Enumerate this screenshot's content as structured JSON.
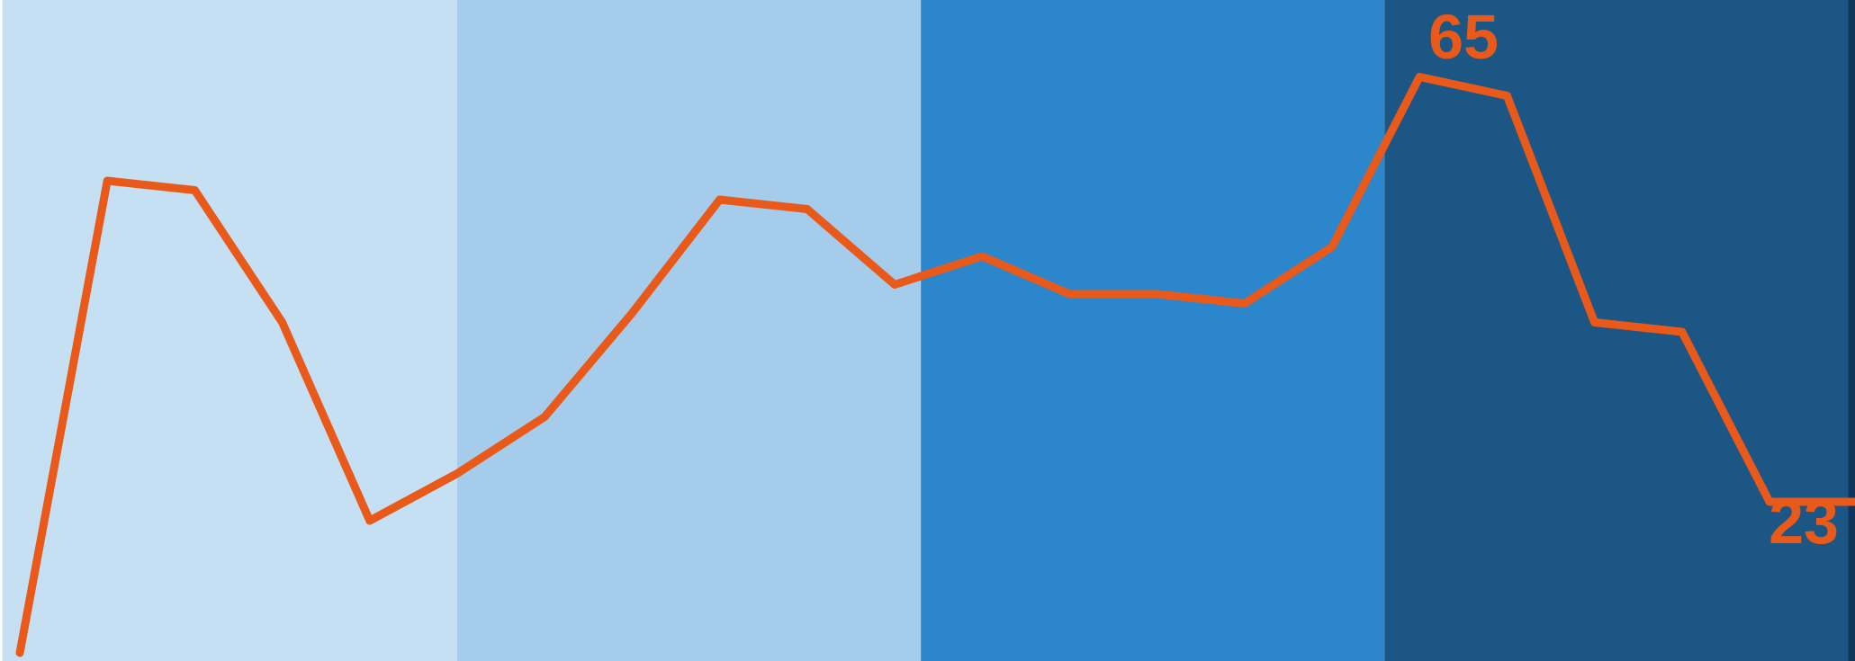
{
  "chart_data": {
    "type": "line",
    "title": "",
    "xlabel": "",
    "ylabel": "",
    "x": [
      0,
      1,
      2,
      3,
      4,
      5,
      6,
      7,
      8,
      9,
      10,
      11,
      12,
      13,
      14,
      15,
      16,
      17,
      18,
      19,
      20,
      21
    ],
    "ylim": [
      0,
      70
    ],
    "grid": false,
    "legend": "none",
    "series": [
      {
        "values": [
          0,
          50,
          49,
          35,
          14,
          19,
          25,
          36,
          48,
          47,
          39,
          42,
          38,
          38,
          37,
          43,
          61,
          59,
          35,
          34,
          16,
          16
        ],
        "color": "#E8591A"
      }
    ],
    "background_bands": [
      {
        "x_start": -0.2,
        "x_end": 5.0,
        "color": "#C5DFF3"
      },
      {
        "x_start": 5.0,
        "x_end": 10.3,
        "color": "#A6CCEC"
      },
      {
        "x_start": 10.3,
        "x_end": 15.6,
        "color": "#2C86CB"
      },
      {
        "x_start": 15.6,
        "x_end": 20.9,
        "color": "#1B5684"
      },
      {
        "x_start": 20.9,
        "x_end": 22.0,
        "color": "#0F355A"
      }
    ],
    "annotations": [
      {
        "text": "65",
        "x": 16.6,
        "y": 65,
        "color": "#E8591A"
      },
      {
        "text": "23",
        "x": 20.5,
        "y": 23,
        "color": "#E8591A"
      }
    ]
  }
}
